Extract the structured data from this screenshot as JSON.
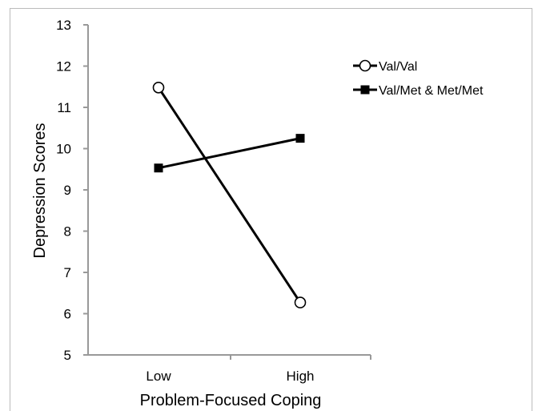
{
  "chart_data": {
    "type": "line",
    "title": "",
    "xlabel": "Problem-Focused Coping",
    "ylabel": "Depression Scores",
    "categories": [
      "Low",
      "High"
    ],
    "ylim": [
      5,
      13
    ],
    "yticks": [
      5,
      6,
      7,
      8,
      9,
      10,
      11,
      12,
      13
    ],
    "series": [
      {
        "name": "Val/Val",
        "marker": "open-circle",
        "values": [
          11.48,
          6.27
        ]
      },
      {
        "name": "Val/Met & Met/Met",
        "marker": "filled-square",
        "values": [
          9.53,
          10.25
        ]
      }
    ],
    "legend_position": "top-right",
    "grid": false,
    "colors": {
      "line": "#000000",
      "axis": "#999999"
    }
  }
}
